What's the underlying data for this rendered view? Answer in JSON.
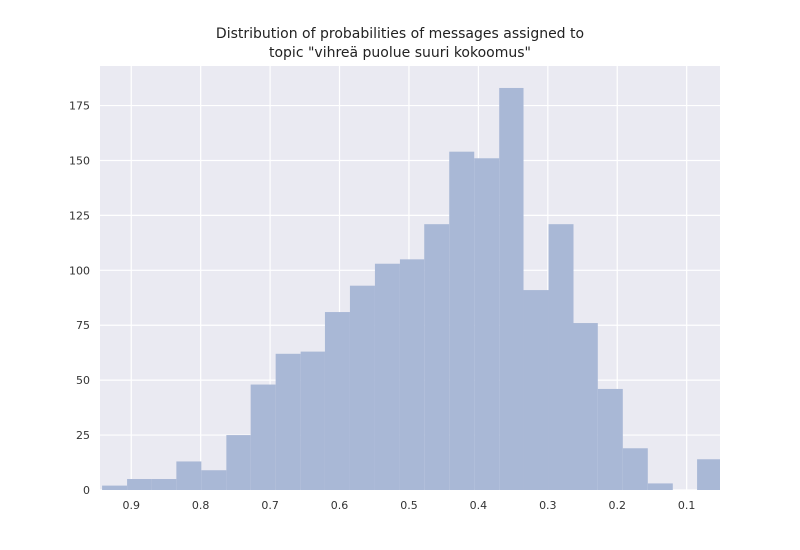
{
  "chart_data": {
    "type": "bar",
    "title_lines": [
      "Distribution of probabilities of messages assigned to",
      "topic \"vihreä puolue suuri kokoomus\""
    ],
    "xlabel": "",
    "ylabel": "",
    "x_axis_inverted": true,
    "xlim": [
      0.945,
      0.052
    ],
    "ylim": [
      0,
      193
    ],
    "grid": true,
    "x_ticks": [
      0.9,
      0.8,
      0.7,
      0.6,
      0.5,
      0.4,
      0.3,
      0.2,
      0.1
    ],
    "x_tick_labels": [
      "0.9",
      "0.8",
      "0.7",
      "0.6",
      "0.5",
      "0.4",
      "0.3",
      "0.2",
      "0.1"
    ],
    "y_ticks": [
      0,
      25,
      50,
      75,
      100,
      125,
      150,
      175
    ],
    "y_tick_labels": [
      "0",
      "25",
      "50",
      "75",
      "100",
      "125",
      "150",
      "175"
    ],
    "bin_edges": [
      0.942,
      0.906,
      0.871,
      0.835,
      0.799,
      0.763,
      0.728,
      0.692,
      0.656,
      0.621,
      0.585,
      0.549,
      0.513,
      0.478,
      0.442,
      0.406,
      0.37,
      0.335,
      0.299,
      0.263,
      0.228,
      0.192,
      0.156,
      0.12,
      0.085,
      0.049
    ],
    "counts": [
      2,
      5,
      5,
      13,
      9,
      25,
      48,
      62,
      63,
      81,
      93,
      103,
      105,
      121,
      154,
      151,
      183,
      91,
      121,
      76,
      46,
      19,
      3,
      0,
      14
    ],
    "bar_color": "#a9b8d6",
    "background_color": "#eaeaf2",
    "grid_color": "#ffffff"
  }
}
